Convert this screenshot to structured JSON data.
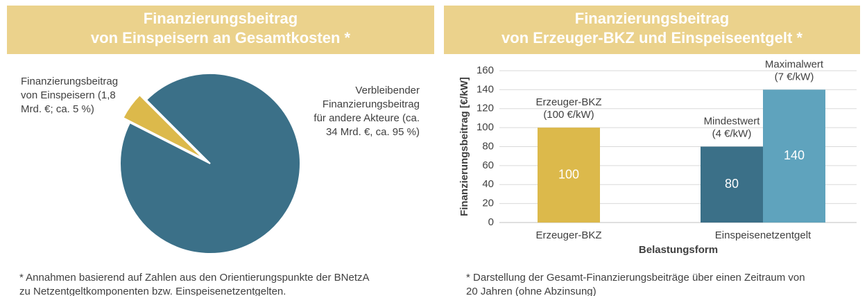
{
  "chart_data": [
    {
      "type": "pie",
      "title": [
        "Finanzierungsbeitrag",
        "von Einspeisern an Gesamtkosten *"
      ],
      "labels": [
        [
          "Finanzierungsbeitrag",
          "von Einspeisern (1,8",
          "Mrd. €; ca. 5 %)"
        ],
        [
          "Verbleibender",
          "Finanzierungsbeitrag",
          "für andere Akteure (ca.",
          "34 Mrd. €, ca. 95 %)"
        ]
      ],
      "values": [
        5,
        95
      ],
      "colors": [
        "#dcb94b",
        "#3b7088"
      ],
      "explode": [
        true,
        false
      ],
      "footnote": [
        "* Annahmen basierend auf Zahlen aus den Orientierungspunkte der BNetzA",
        "zu Netzentgeltkomponenten bzw. Einspeisenetzentgelten."
      ]
    },
    {
      "type": "bar",
      "title": [
        "Finanzierungsbeitrag",
        "von Erzeuger-BKZ und Einspeiseentgelt *"
      ],
      "categories": [
        "Erzeuger-BKZ",
        "Einspeisenetzentgelt"
      ],
      "series": [
        {
          "color": "#dcb94b",
          "values": [
            100,
            null
          ],
          "annotation": [
            "Erzeuger-BKZ",
            "(100 €/kW)"
          ]
        },
        {
          "color": "#3b7088",
          "values": [
            null,
            80
          ],
          "annotation": [
            "Mindestwert",
            "(4 €/kW)"
          ]
        },
        {
          "color": "#5fa3bd",
          "values": [
            null,
            140
          ],
          "annotation": [
            "Maximalwert",
            "(7 €/kW)"
          ]
        }
      ],
      "ylabel": "Finanzierungsbeitrag [€/kW]",
      "xlabel": "Belastungsform",
      "ylim": [
        0,
        160
      ],
      "yticks": [
        0,
        20,
        40,
        60,
        80,
        100,
        120,
        140,
        160
      ],
      "grid": true,
      "footnote": [
        "* Darstellung der Gesamt-Finanzierungsbeiträge über einen Zeitraum von",
        "20 Jahren (ohne Abzinsung)"
      ]
    }
  ]
}
